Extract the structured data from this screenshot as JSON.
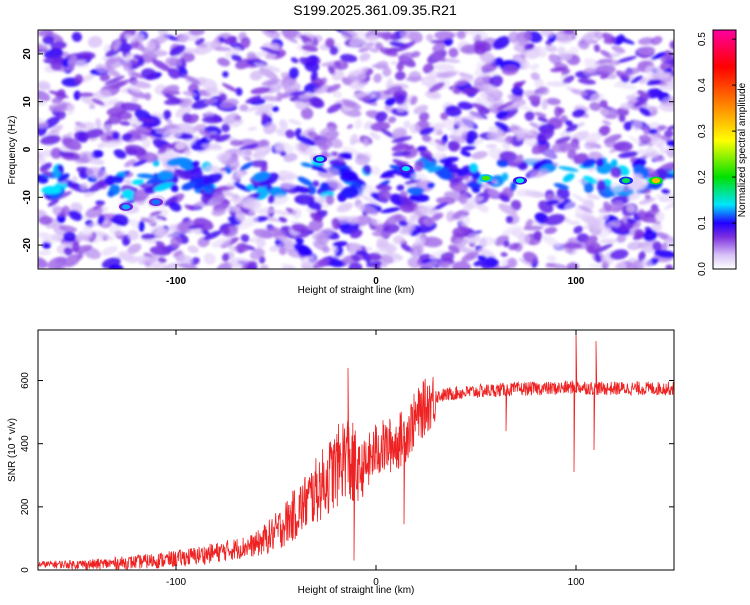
{
  "title": "S199.2025.361.09.35.R21",
  "chart_data": [
    {
      "type": "heatmap",
      "xlabel": "Height of straight line (km)",
      "ylabel": "Frequency (Hz)",
      "xlim": [
        -169,
        149
      ],
      "ylim": [
        -25,
        25
      ],
      "xticks": [
        -100,
        0,
        100
      ],
      "yticks": [
        -20,
        -10,
        0,
        10,
        20
      ],
      "colorbar": {
        "label": "Normalized spectral amplitude",
        "range": [
          0,
          0.52
        ],
        "ticks": [
          0,
          0.1,
          0.2,
          0.3,
          0.4,
          0.5
        ],
        "colors": [
          "#ffffff",
          "#d9c2f7",
          "#7b2fe0",
          "#2200ff",
          "#00e5ff",
          "#00e000",
          "#ffff00",
          "#ff8000",
          "#ff0000",
          "#ff00a0"
        ]
      },
      "features": {
        "background_noise": "purple speckle, amplitude 0.0-0.1",
        "signal_band_frequency_hz": -6,
        "hot_spots": [
          {
            "x": -125,
            "y": -12,
            "amplitude": 0.13
          },
          {
            "x": -110,
            "y": -11,
            "amplitude": 0.12
          },
          {
            "x": -28,
            "y": -2,
            "amplitude": 0.15
          },
          {
            "x": 15,
            "y": -4,
            "amplitude": 0.14
          },
          {
            "x": 55,
            "y": -6,
            "amplitude": 0.22
          },
          {
            "x": 72,
            "y": -6.5,
            "amplitude": 0.15
          },
          {
            "x": 125,
            "y": -6.5,
            "amplitude": 0.18
          },
          {
            "x": 140,
            "y": -6.5,
            "amplitude": 0.32
          }
        ]
      }
    },
    {
      "type": "line",
      "xlabel": "Height of straight line (km)",
      "ylabel": "SNR (10 * v/v)",
      "xlim": [
        -169,
        149
      ],
      "ylim": [
        0,
        760
      ],
      "xticks": [
        -100,
        0,
        100
      ],
      "yticks": [
        0,
        200,
        400,
        600
      ],
      "color": "#ee2222",
      "trend": {
        "x": [
          -169,
          -140,
          -120,
          -100,
          -80,
          -60,
          -50,
          -40,
          -30,
          -20,
          -15,
          -10,
          -5,
          0,
          5,
          10,
          15,
          20,
          25,
          30,
          40,
          60,
          80,
          90,
          100,
          110,
          120,
          149
        ],
        "snr": [
          18,
          18,
          25,
          35,
          55,
          80,
          120,
          180,
          250,
          320,
          370,
          300,
          330,
          380,
          390,
          400,
          430,
          480,
          520,
          550,
          560,
          570,
          575,
          575,
          580,
          575,
          575,
          575
        ]
      },
      "spikes": [
        {
          "x": -14,
          "snr": 640
        },
        {
          "x": -11,
          "snr": 30
        },
        {
          "x": 14,
          "snr": 145
        },
        {
          "x": 65,
          "snr": 440
        },
        {
          "x": 100,
          "snr": 760
        },
        {
          "x": 99,
          "snr": 310
        },
        {
          "x": 110,
          "snr": 725
        },
        {
          "x": 109,
          "snr": 380
        }
      ]
    }
  ]
}
